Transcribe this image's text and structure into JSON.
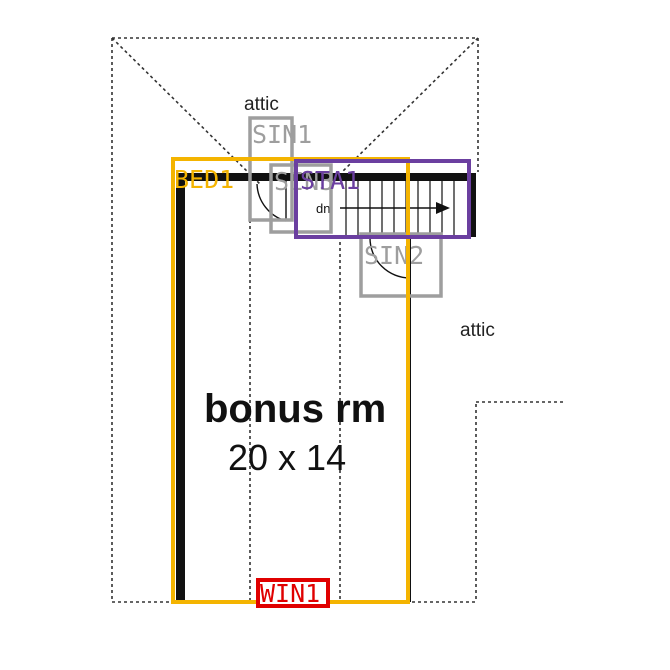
{
  "plan": {
    "room_name": "bonus rm",
    "room_size": "20 x 14",
    "attic_top_label": "attic",
    "attic_right_label": "attic",
    "stair_label": "dn"
  },
  "annotations": [
    {
      "id": "sin1",
      "label": "SIN1",
      "color": "#9e9e9e"
    },
    {
      "id": "bed1",
      "label": "BED1",
      "color": "#f4b400"
    },
    {
      "id": "sin3",
      "label": "SIN3",
      "color": "#9e9e9e"
    },
    {
      "id": "sta1",
      "label": "STA1",
      "color": "#6b3fa0"
    },
    {
      "id": "sin2",
      "label": "SIN2",
      "color": "#9e9e9e"
    },
    {
      "id": "win1",
      "label": "WIN1",
      "color": "#e00000"
    }
  ],
  "colors": {
    "wall": "#111111",
    "dashed": "#333333",
    "background": "#ffffff"
  }
}
